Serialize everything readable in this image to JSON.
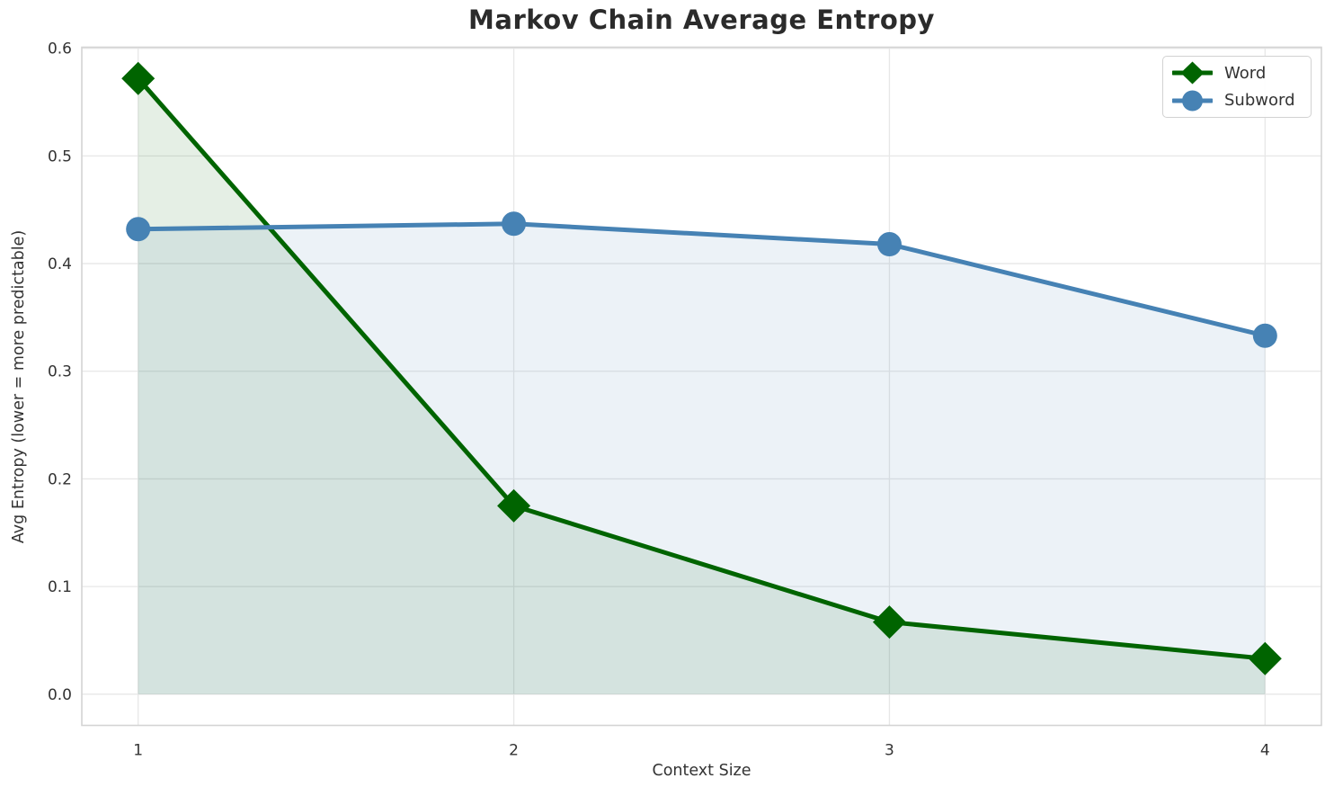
{
  "chart_data": {
    "type": "line",
    "title": "Markov Chain Average Entropy",
    "xlabel": "Context Size",
    "ylabel": "Avg Entropy (lower = more predictable)",
    "x": [
      1,
      2,
      3,
      4
    ],
    "series": [
      {
        "name": "Word",
        "values": [
          0.572,
          0.175,
          0.067,
          0.033
        ],
        "color": "#006400",
        "marker": "diamond",
        "fill": true
      },
      {
        "name": "Subword",
        "values": [
          0.432,
          0.437,
          0.418,
          0.333
        ],
        "color": "#4682b4",
        "marker": "circle",
        "fill": true
      }
    ],
    "fill_to": 0,
    "fill_opacity": 0.1,
    "line_width": 5,
    "xlim": [
      0.85,
      4.15
    ],
    "ylim": [
      -0.029,
      0.601
    ],
    "xticks": [
      "1",
      "2",
      "3",
      "4"
    ],
    "xtick_values": [
      1,
      2,
      3,
      4
    ],
    "yticks": [
      "0.0",
      "0.1",
      "0.2",
      "0.3",
      "0.4",
      "0.5",
      "0.6"
    ],
    "ytick_values": [
      0.0,
      0.1,
      0.2,
      0.3,
      0.4,
      0.5,
      0.6
    ],
    "grid": true,
    "legend_position": "upper right",
    "colors": {
      "grid": "#e7e7e7",
      "spine": "#d4d4d4",
      "tick_text": "#333333",
      "title_text": "#2b2b2b"
    }
  }
}
